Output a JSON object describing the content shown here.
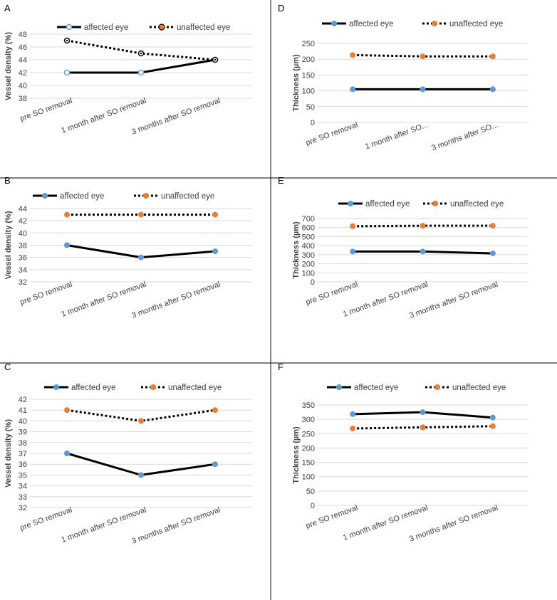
{
  "figure": {
    "colors": {
      "affected_line": "#000000",
      "affected_marker": "#5b9bd5",
      "unaffected_marker": "#ed7d31",
      "grid": "#d9d9d9",
      "text": "#404040",
      "divider": "#000000"
    }
  },
  "chart_data": [
    {
      "panel": "A",
      "type": "line",
      "categories": [
        "pre  SO removal",
        "1 month after SO removal",
        "3 months after SO removal"
      ],
      "series": [
        {
          "name": "affected eye",
          "values": [
            42,
            42,
            44
          ]
        },
        {
          "name": "unaffected eye",
          "values": [
            47,
            45,
            44
          ]
        }
      ],
      "ylabel": "Vessel density (%)",
      "yticks": [
        38,
        40,
        42,
        44,
        46,
        48
      ],
      "ylim": [
        38,
        48
      ],
      "legend": "top",
      "marker_style": "A"
    },
    {
      "panel": "D",
      "type": "line",
      "categories": [
        "pre  SO removal",
        "1 month after SO...",
        "3 months after SO..."
      ],
      "series": [
        {
          "name": "affected eye",
          "values": [
            105,
            105,
            105
          ]
        },
        {
          "name": "unaffected eye",
          "values": [
            213,
            209,
            209
          ]
        }
      ],
      "ylabel": "Thickness (µm)",
      "yticks": [
        0,
        50,
        100,
        150,
        200,
        250
      ],
      "ylim": [
        0,
        250
      ],
      "legend": "top",
      "marker_style": "filled"
    },
    {
      "panel": "B",
      "type": "line",
      "categories": [
        "pre  SO removal",
        "1 month after SO removal",
        "3 months after SO removal"
      ],
      "series": [
        {
          "name": "affected eye",
          "values": [
            38,
            36,
            37
          ]
        },
        {
          "name": "unaffected eye",
          "values": [
            43,
            43,
            43
          ]
        }
      ],
      "ylabel": "Vessel density (%)",
      "yticks": [
        32,
        34,
        36,
        38,
        40,
        42,
        44
      ],
      "ylim": [
        32,
        44
      ],
      "legend": "top",
      "marker_style": "filled"
    },
    {
      "panel": "E",
      "type": "line",
      "categories": [
        "pre  SO removal",
        "1 month after SO removal",
        "3 months after SO removal"
      ],
      "series": [
        {
          "name": "affected eye",
          "values": [
            335,
            335,
            315
          ]
        },
        {
          "name": "unaffected eye",
          "values": [
            615,
            620,
            620
          ]
        }
      ],
      "ylabel": "Thickness (µm)",
      "yticks": [
        0,
        100,
        200,
        300,
        400,
        500,
        600,
        700
      ],
      "ylim": [
        0,
        700
      ],
      "legend": "top",
      "marker_style": "filled"
    },
    {
      "panel": "C",
      "type": "line",
      "categories": [
        "pre  SO removal",
        "1 month after SO removal",
        "3 months after SO removal"
      ],
      "series": [
        {
          "name": "affected eye",
          "values": [
            37,
            35,
            36
          ]
        },
        {
          "name": "unaffected eye",
          "values": [
            41,
            40,
            41
          ]
        }
      ],
      "ylabel": "Vessel density (%)",
      "yticks": [
        32,
        33,
        34,
        35,
        36,
        37,
        38,
        39,
        40,
        41,
        42
      ],
      "ylim": [
        32,
        42
      ],
      "legend": "top",
      "marker_style": "filled"
    },
    {
      "panel": "F",
      "type": "line",
      "categories": [
        "pre  SO removal",
        "1 month after SO removal",
        "3 months after SO removal"
      ],
      "series": [
        {
          "name": "affected eye",
          "values": [
            318,
            325,
            306
          ]
        },
        {
          "name": "unaffected eye",
          "values": [
            268,
            272,
            276
          ]
        }
      ],
      "ylabel": "Thickness (µm)",
      "yticks": [
        0,
        50,
        100,
        150,
        200,
        250,
        300,
        350
      ],
      "ylim": [
        0,
        350
      ],
      "legend": "top",
      "marker_style": "filled"
    }
  ]
}
